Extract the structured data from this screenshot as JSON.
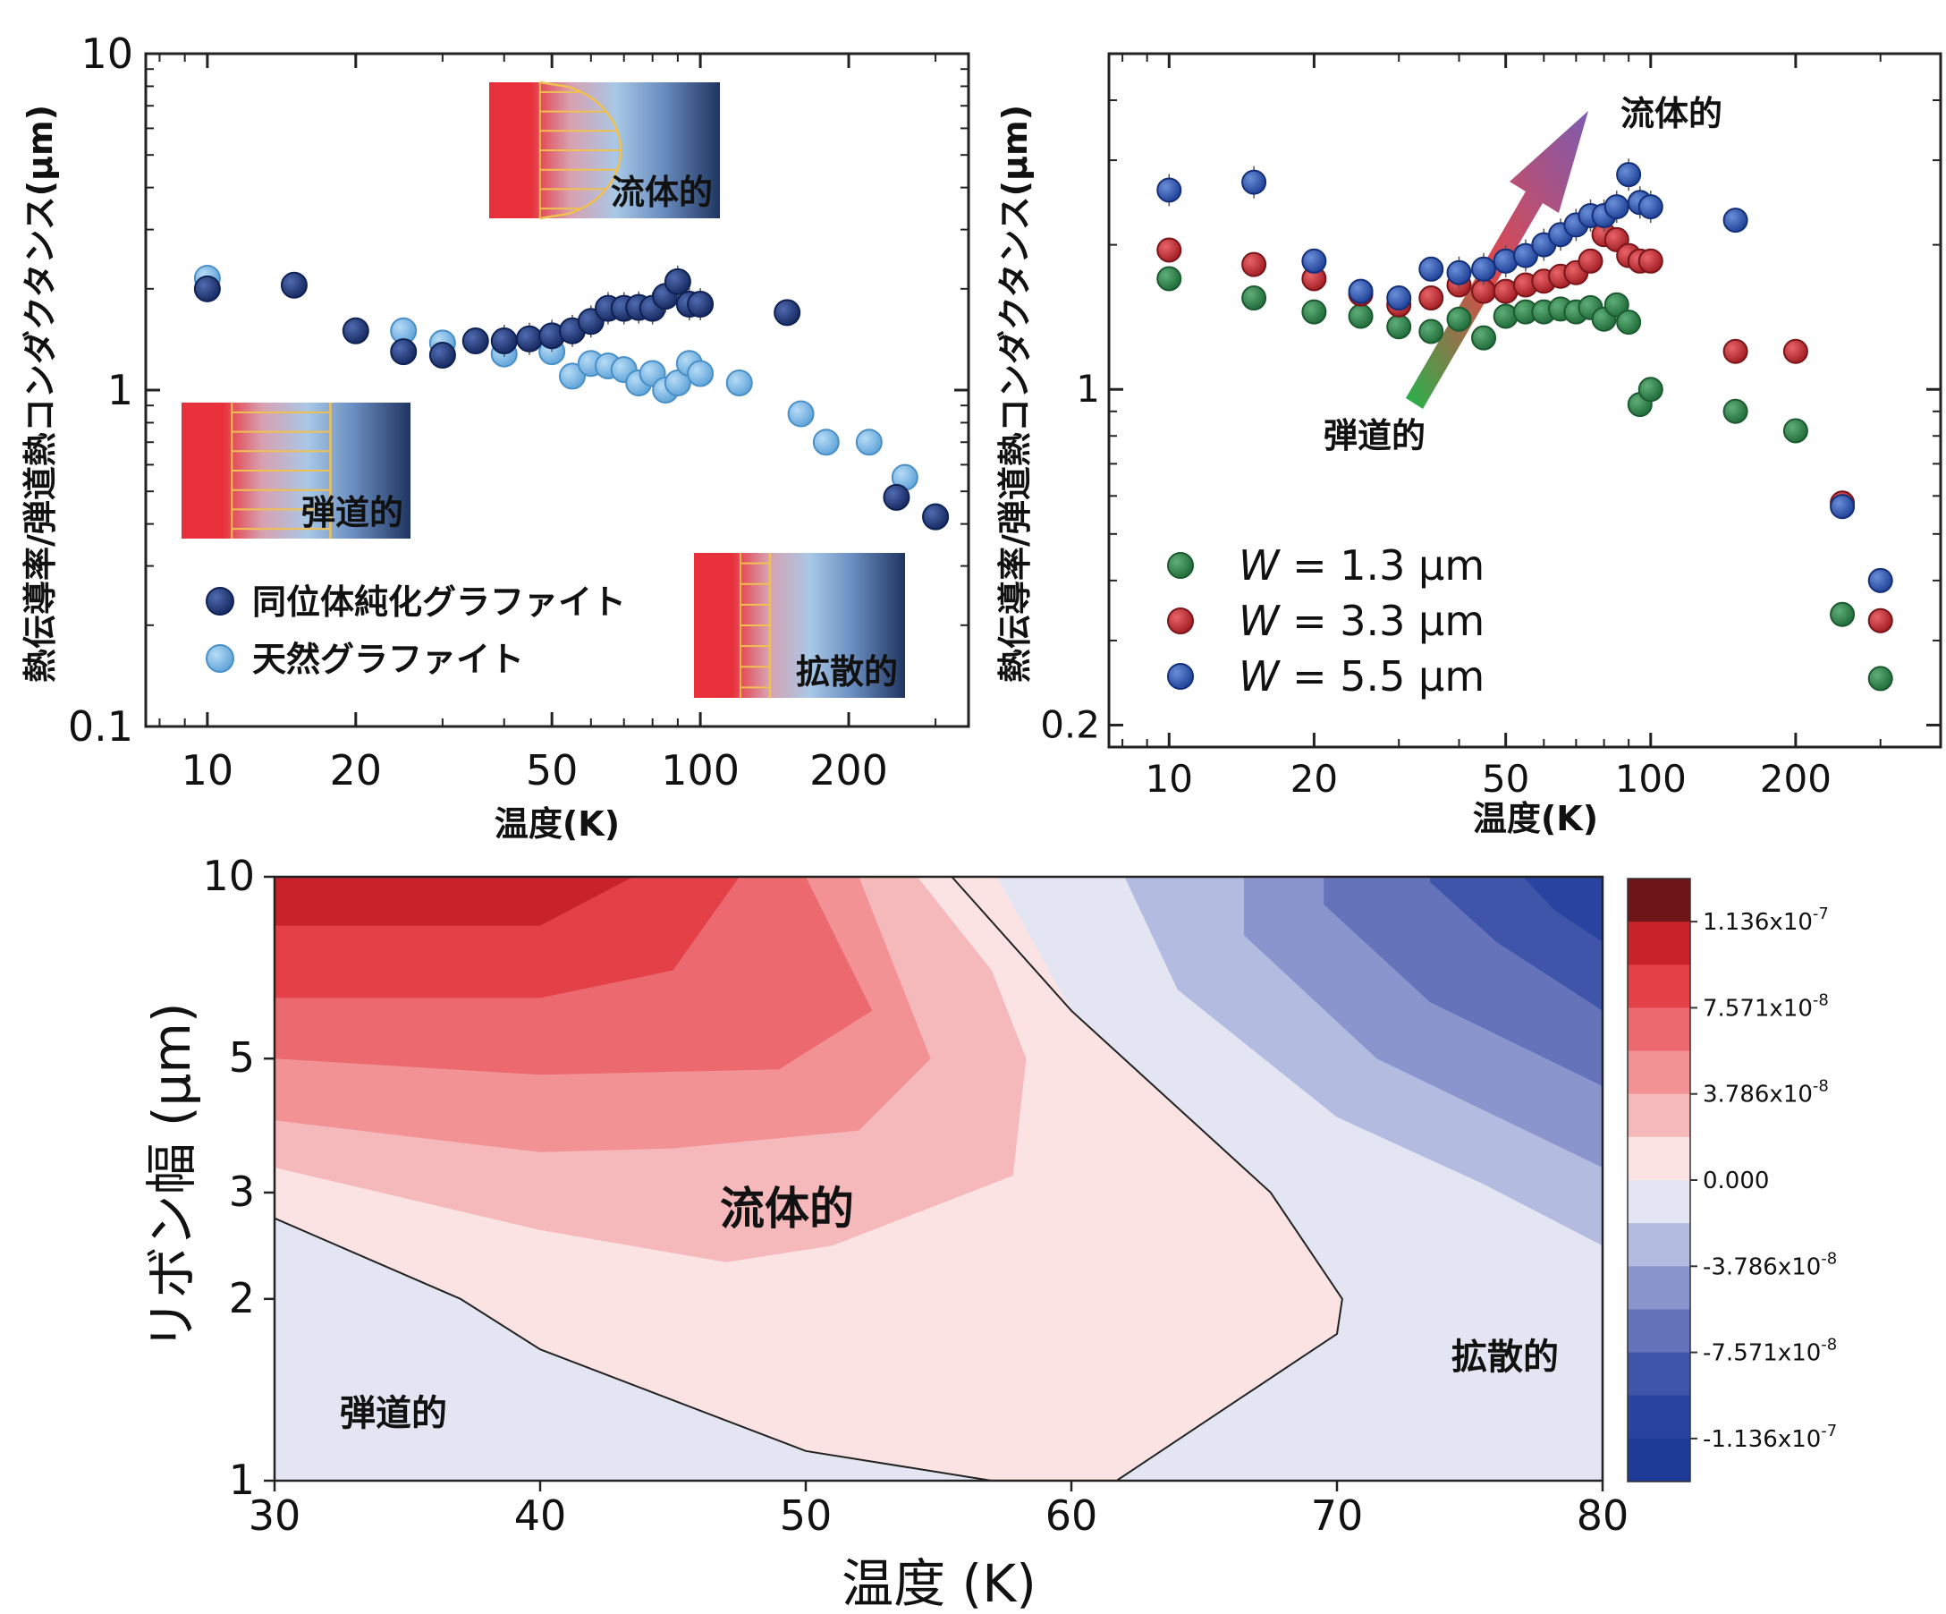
{
  "colors": {
    "iso": "#1f3a7a",
    "iso_edge": "#0e2256",
    "natural": "#7ab8e6",
    "natural_edge": "#4a90c8",
    "green": "#2f7d4a",
    "red": "#c0282d",
    "blue": "#2d55b0",
    "inset_red": "#e8303a",
    "inset_blue": "#2a3f6e",
    "profile": "#f0c050"
  },
  "panel_a": {
    "ylabel": "熱伝導率/弾道熱コンダクタンス(μm)",
    "xlabel": "温度(K)",
    "xticks": [
      "10",
      "20",
      "50",
      "100",
      "200"
    ],
    "yticks": [
      "0.1",
      "1",
      "10"
    ],
    "legend": [
      "同位体純化グラファイト",
      "天然グラファイト"
    ],
    "inset_labels": {
      "hydro": "流体的",
      "ballistic": "弾道的",
      "diffusive": "拡散的"
    }
  },
  "panel_b": {
    "ylabel": "熱伝導率/弾道熱コンダクタンス(μm)",
    "xlabel": "温度(K)",
    "xticks": [
      "10",
      "20",
      "50",
      "100",
      "200"
    ],
    "yticks": [
      "0.2",
      "1"
    ],
    "legend": [
      {
        "symbol": "W",
        "text": " = 1.3 μm"
      },
      {
        "symbol": "W",
        "text": " = 3.3 μm"
      },
      {
        "symbol": "W",
        "text": " = 5.5 μm"
      }
    ],
    "arrow_top_label": "流体的",
    "arrow_bottom_label": "弾道的"
  },
  "panel_c": {
    "ylabel": "リボン幅 (μm)",
    "xlabel": "温度 (K)",
    "xticks": [
      "30",
      "40",
      "50",
      "60",
      "70",
      "80"
    ],
    "yticks": [
      "1",
      "2",
      "3",
      "5",
      "10"
    ],
    "regime_labels": {
      "ballistic": "弾道的",
      "hydro": "流体的",
      "diffusive": "拡散的"
    },
    "colorbar_ticks": [
      "1.136x10",
      "7.571x10",
      "3.786x10",
      "0.000",
      "-3.786x10",
      "-7.571x10",
      "-1.136x10"
    ],
    "colorbar_exps": [
      "-7",
      "-8",
      "-8",
      "",
      "-8",
      "-8",
      "-7"
    ],
    "levels": [
      "#6e1518",
      "#c8232b",
      "#e34048",
      "#ec6a6f",
      "#f29295",
      "#f6b9bb",
      "#fbe2e3",
      "#e3e6f2",
      "#b4bbe0",
      "#8b95cd",
      "#6573ba",
      "#3e55aa",
      "#2844a0",
      "#1c3a96"
    ]
  },
  "chart_data": [
    {
      "type": "scatter",
      "xlabel": "温度(K)",
      "ylabel": "熱伝導率/弾道熱コンダクタンス(μm)",
      "xscale": "log",
      "yscale": "log",
      "xlim": [
        7.5,
        350
      ],
      "ylim": [
        0.1,
        10
      ],
      "legend_position": "lower-left",
      "series": [
        {
          "name": "同位体純化グラファイト",
          "x": [
            10,
            15,
            20,
            25,
            30,
            35,
            40,
            45,
            50,
            55,
            60,
            65,
            70,
            75,
            80,
            85,
            90,
            95,
            100,
            150,
            250,
            300
          ],
          "y": [
            2.0,
            2.05,
            1.5,
            1.3,
            1.27,
            1.4,
            1.4,
            1.42,
            1.45,
            1.5,
            1.6,
            1.75,
            1.75,
            1.76,
            1.75,
            1.9,
            2.1,
            1.8,
            1.8,
            1.7,
            0.48,
            0.42
          ]
        },
        {
          "name": "天然グラファイト",
          "x": [
            10,
            25,
            30,
            40,
            50,
            55,
            60,
            65,
            70,
            75,
            80,
            85,
            90,
            95,
            100,
            120,
            160,
            180,
            220,
            260,
            300
          ],
          "y": [
            2.15,
            1.5,
            1.38,
            1.28,
            1.3,
            1.1,
            1.2,
            1.18,
            1.15,
            1.05,
            1.12,
            1.0,
            1.05,
            1.2,
            1.12,
            1.05,
            0.85,
            0.7,
            0.7,
            0.55,
            0.42
          ]
        }
      ]
    },
    {
      "type": "scatter",
      "xlabel": "温度(K)",
      "ylabel": "熱伝導率/弾道熱コンダクタンス(μm)",
      "xscale": "log",
      "yscale": "log",
      "xlim": [
        7.5,
        400
      ],
      "ylim": [
        0.18,
        5
      ],
      "legend_position": "lower-left",
      "series": [
        {
          "name": "W = 1.3 μm",
          "x": [
            10,
            15,
            20,
            25,
            30,
            35,
            40,
            45,
            50,
            55,
            60,
            65,
            70,
            75,
            80,
            85,
            90,
            95,
            100,
            150,
            200,
            250,
            300
          ],
          "y": [
            1.7,
            1.55,
            1.45,
            1.42,
            1.35,
            1.32,
            1.4,
            1.28,
            1.42,
            1.45,
            1.45,
            1.47,
            1.45,
            1.48,
            1.4,
            1.5,
            1.38,
            0.93,
            1.0,
            0.9,
            0.82,
            0.34,
            0.25
          ]
        },
        {
          "name": "W = 3.3 μm",
          "x": [
            10,
            15,
            20,
            25,
            30,
            35,
            40,
            45,
            50,
            55,
            60,
            65,
            70,
            75,
            80,
            85,
            90,
            95,
            100,
            150,
            200,
            250,
            300
          ],
          "y": [
            1.95,
            1.82,
            1.7,
            1.58,
            1.5,
            1.55,
            1.65,
            1.6,
            1.6,
            1.65,
            1.68,
            1.72,
            1.75,
            1.85,
            2.1,
            2.05,
            1.9,
            1.85,
            1.85,
            1.2,
            1.2,
            0.58,
            0.33
          ]
        },
        {
          "name": "W = 5.5 μm",
          "x": [
            10,
            15,
            20,
            25,
            30,
            35,
            40,
            45,
            50,
            55,
            60,
            65,
            70,
            75,
            80,
            85,
            90,
            95,
            100,
            150,
            250,
            300
          ],
          "y": [
            2.6,
            2.7,
            1.85,
            1.6,
            1.55,
            1.78,
            1.75,
            1.78,
            1.85,
            1.9,
            2.0,
            2.1,
            2.2,
            2.3,
            2.3,
            2.4,
            2.8,
            2.45,
            2.4,
            2.25,
            0.57,
            0.4
          ]
        }
      ]
    },
    {
      "type": "contour",
      "xlabel": "温度 (K)",
      "ylabel": "リボン幅 (μm)",
      "yscale": "log",
      "xlim": [
        30,
        80
      ],
      "ylim": [
        1,
        10
      ],
      "zero_contour": {
        "upper": {
          "x": [
            55.5,
            60,
            67.5,
            70.2,
            70,
            61.7
          ],
          "y": [
            10,
            6,
            3.0,
            2.0,
            1.75,
            1.0
          ]
        },
        "lower": {
          "x": [
            30,
            37,
            40,
            50,
            57
          ],
          "y": [
            2.72,
            2.0,
            1.65,
            1.12,
            1.0
          ]
        }
      },
      "colorbar": {
        "ticks": [
          "1.136x10-7",
          "7.571x10-8",
          "3.786x10-8",
          "0.000",
          "-3.786x10-8",
          "-7.571x10-8",
          "-1.136x10-7"
        ],
        "values": [
          1.136e-07,
          7.571e-08,
          3.786e-08,
          0,
          -3.786e-08,
          -7.571e-08,
          -1.136e-07
        ]
      }
    }
  ]
}
